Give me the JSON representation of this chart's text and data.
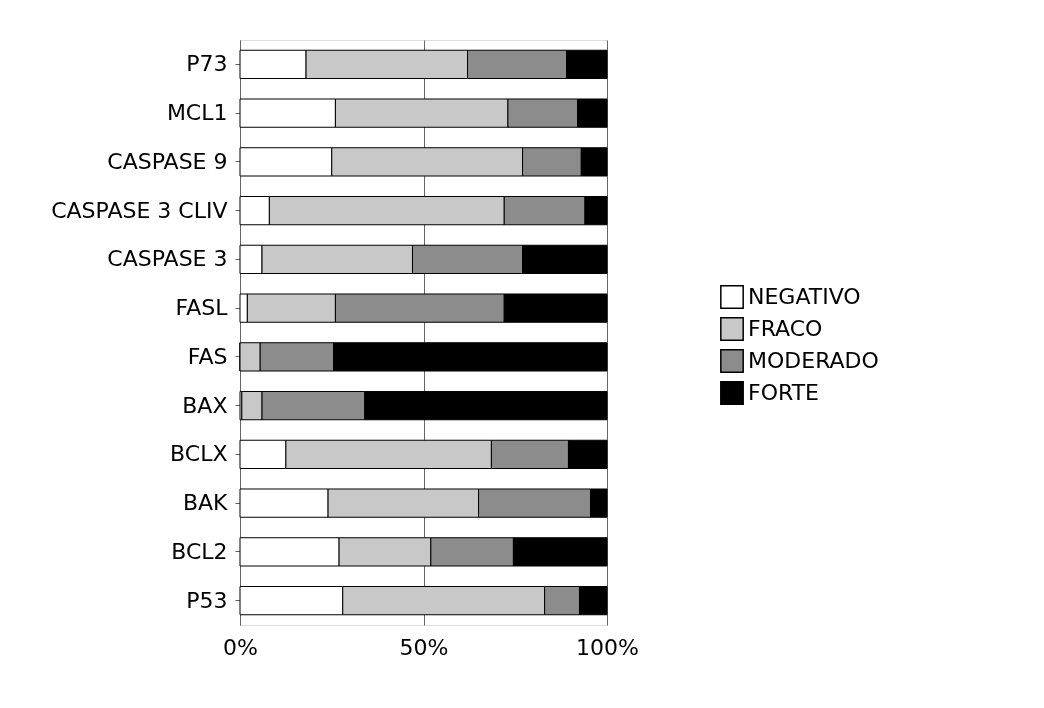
{
  "chart_data": {
    "type": "bar",
    "orientation": "horizontal",
    "stacked": true,
    "categories": [
      "P73",
      "MCL1",
      "CASPASE 9",
      "CASPASE 3 CLIV",
      "CASPASE 3",
      "FASL",
      "FAS",
      "BAX",
      "BCLX",
      "BAK",
      "BCL2",
      "P53"
    ],
    "series": [
      {
        "name": "NEGATIVO",
        "color": "#ffffff",
        "values": [
          18,
          26,
          25,
          8,
          6,
          2,
          0,
          0.5,
          12.5,
          24,
          27,
          28
        ]
      },
      {
        "name": "FRACO",
        "color": "#c8c8c8",
        "values": [
          44,
          47,
          52,
          64,
          41,
          24,
          5.5,
          5.5,
          56,
          41,
          25,
          55
        ]
      },
      {
        "name": "MODERADO",
        "color": "#8c8c8c",
        "values": [
          27,
          19,
          16,
          22,
          30,
          46,
          20,
          28,
          21,
          30.5,
          22.5,
          9.5
        ]
      },
      {
        "name": "FORTE",
        "color": "#000000",
        "values": [
          11,
          8,
          7,
          6,
          23,
          28,
          74.5,
          66,
          10.5,
          4.5,
          25.5,
          7.5
        ]
      }
    ],
    "xlim": [
      0,
      100
    ],
    "xticks": [
      {
        "value": 0,
        "label": "0%"
      },
      {
        "value": 50,
        "label": "50%"
      },
      {
        "value": 100,
        "label": "100%"
      }
    ],
    "grid": "x",
    "legend": "right"
  }
}
